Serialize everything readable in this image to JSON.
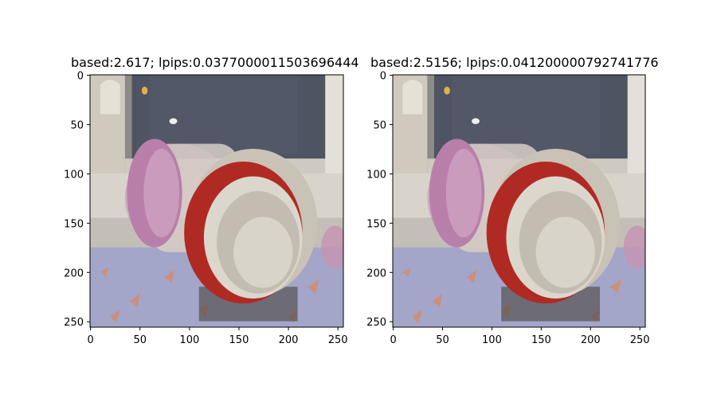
{
  "figure": {
    "panels": [
      {
        "title": "based:2.617; lpips:0.0377000011503696444",
        "x_ticks": [
          "0",
          "50",
          "100",
          "150",
          "200",
          "250"
        ],
        "y_ticks": [
          "0",
          "50",
          "100",
          "150",
          "200",
          "250"
        ]
      },
      {
        "title": "based:2.5156; lpips:0.041200000792741776",
        "x_ticks": [
          "0",
          "50",
          "100",
          "150",
          "200",
          "250"
        ],
        "y_ticks": [
          "0",
          "50",
          "100",
          "150",
          "200",
          "250"
        ]
      }
    ]
  }
}
